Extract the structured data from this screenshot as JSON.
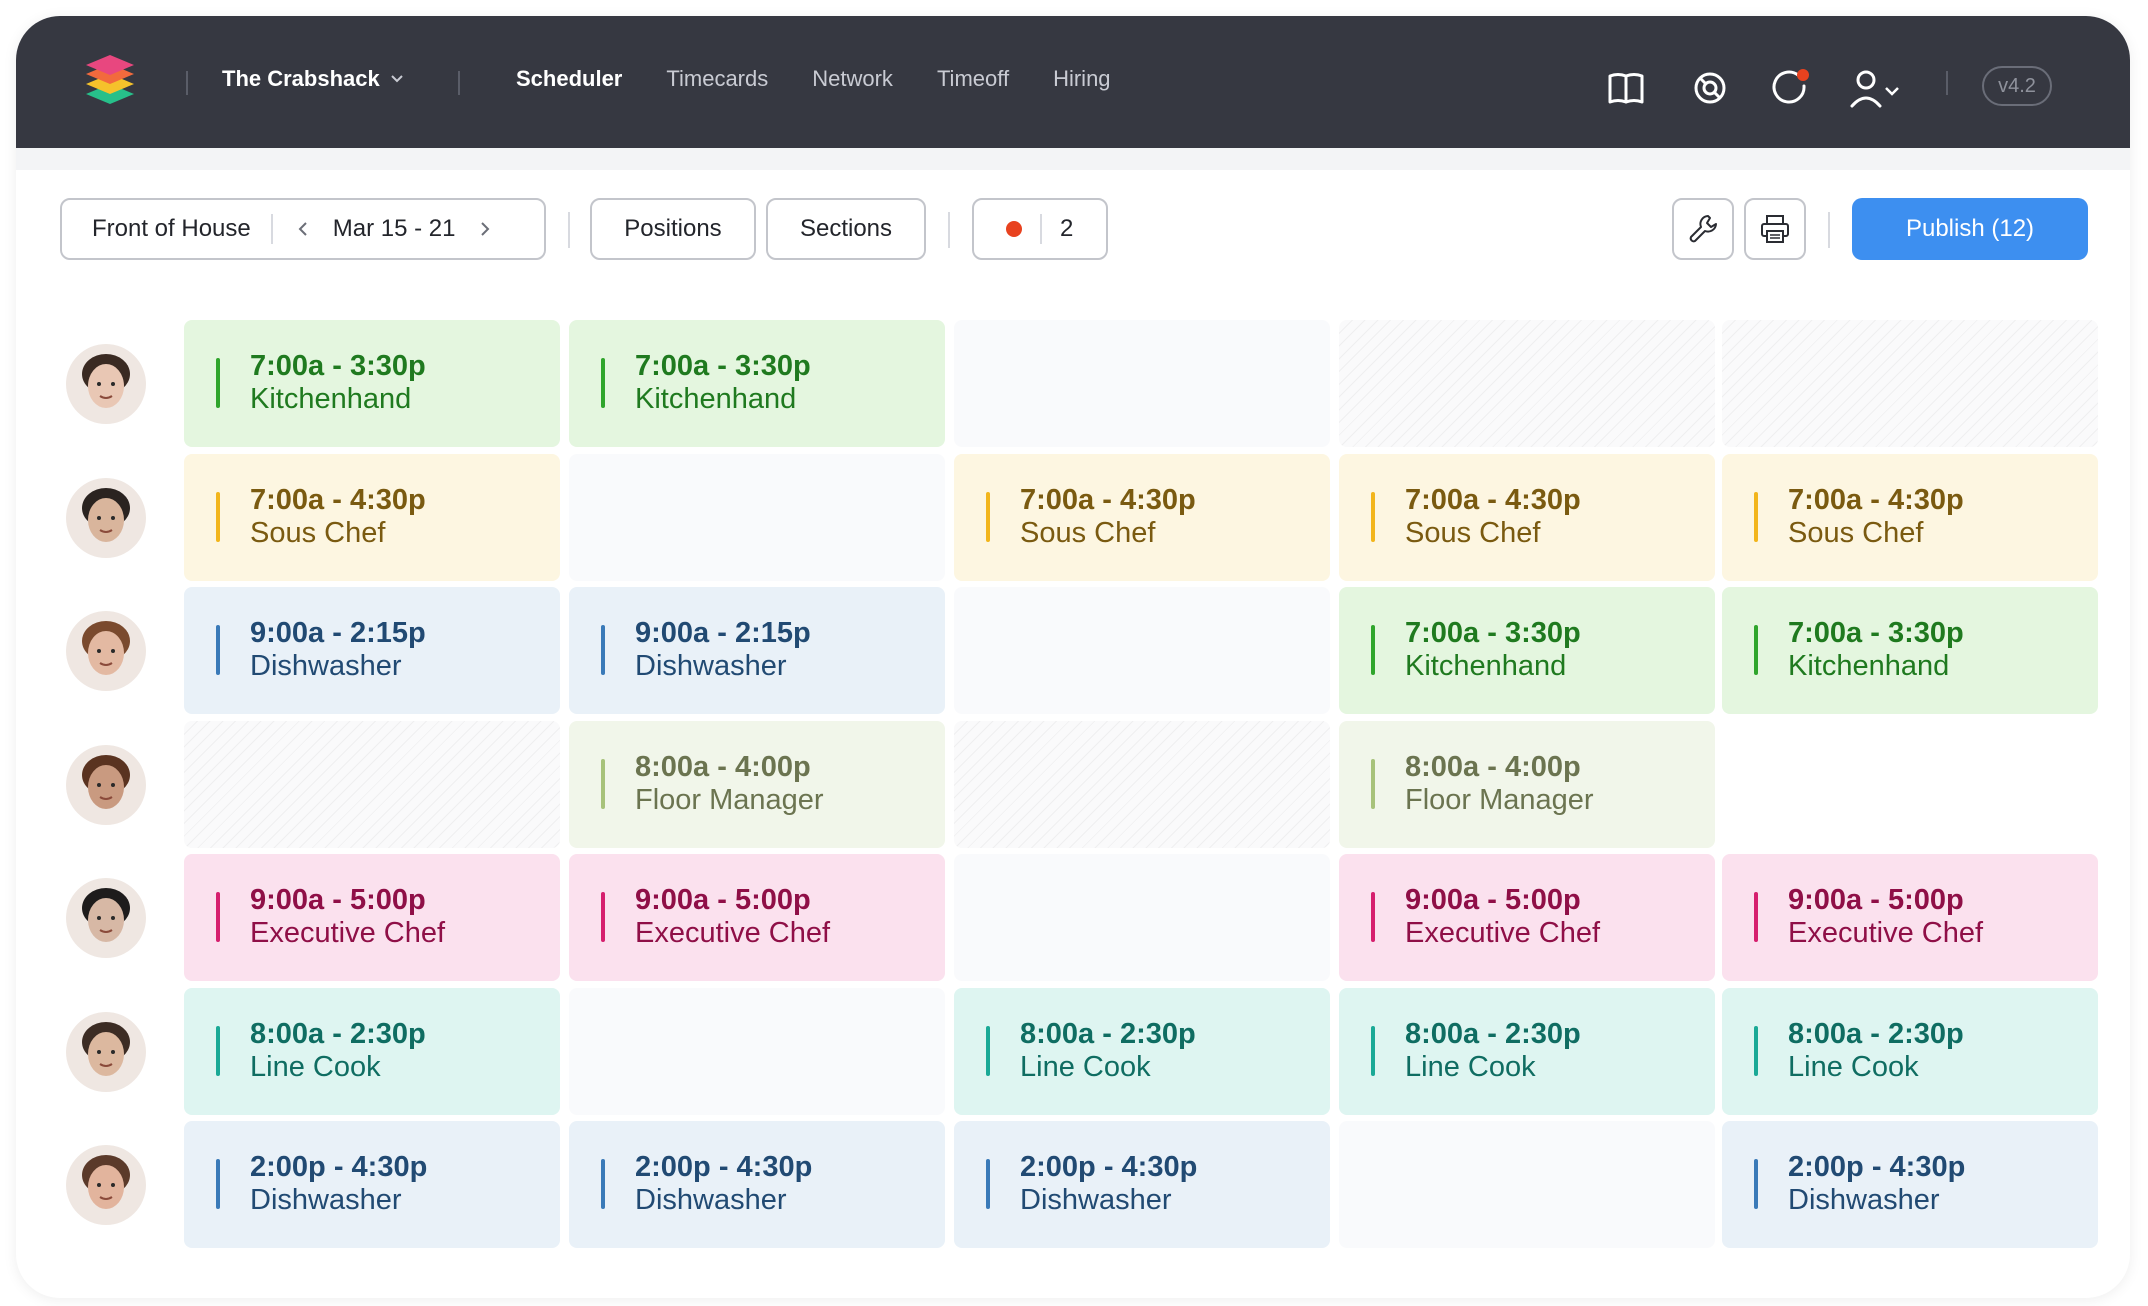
{
  "header": {
    "org_name": "The Crabshack",
    "nav": [
      {
        "label": "Scheduler",
        "active": true
      },
      {
        "label": "Timecards",
        "active": false
      },
      {
        "label": "Network",
        "active": false
      },
      {
        "label": "Timeoff",
        "active": false
      },
      {
        "label": "Hiring",
        "active": false
      }
    ],
    "icons": [
      "book-icon",
      "help-icon",
      "notifications-icon",
      "user-menu-icon"
    ],
    "version": "v4.2"
  },
  "toolbar": {
    "location": "Front of House",
    "date_range": "Mar 15 - 21",
    "positions_label": "Positions",
    "sections_label": "Sections",
    "alert_count": "2",
    "publish_label": "Publish (12)",
    "colors": {
      "accent": "#3d8ff0",
      "alert": "#e8421f"
    }
  },
  "schedule": {
    "rows": [
      {
        "avatar": "avatar-1",
        "cells": [
          {
            "kind": "shift",
            "time": "7:00a - 3:30p",
            "role": "Kitchenhand",
            "color": "green"
          },
          {
            "kind": "shift",
            "time": "7:00a - 3:30p",
            "role": "Kitchenhand",
            "color": "green"
          },
          {
            "kind": "empty"
          },
          {
            "kind": "unavailable"
          },
          {
            "kind": "unavailable"
          }
        ]
      },
      {
        "avatar": "avatar-2",
        "cells": [
          {
            "kind": "shift",
            "time": "7:00a - 4:30p",
            "role": "Sous Chef",
            "color": "yellow"
          },
          {
            "kind": "empty"
          },
          {
            "kind": "shift",
            "time": "7:00a - 4:30p",
            "role": "Sous Chef",
            "color": "yellow"
          },
          {
            "kind": "shift",
            "time": "7:00a - 4:30p",
            "role": "Sous Chef",
            "color": "yellow"
          },
          {
            "kind": "shift",
            "time": "7:00a - 4:30p",
            "role": "Sous Chef",
            "color": "yellow"
          }
        ]
      },
      {
        "avatar": "avatar-3",
        "cells": [
          {
            "kind": "shift",
            "time": "9:00a - 2:15p",
            "role": "Dishwasher",
            "color": "blue"
          },
          {
            "kind": "shift",
            "time": "9:00a - 2:15p",
            "role": "Dishwasher",
            "color": "blue"
          },
          {
            "kind": "empty"
          },
          {
            "kind": "shift",
            "time": "7:00a - 3:30p",
            "role": "Kitchenhand",
            "color": "green"
          },
          {
            "kind": "shift",
            "time": "7:00a - 3:30p",
            "role": "Kitchenhand",
            "color": "green"
          }
        ]
      },
      {
        "avatar": "avatar-4",
        "cells": [
          {
            "kind": "unavailable"
          },
          {
            "kind": "shift",
            "time": "8:00a - 4:00p",
            "role": "Floor Manager",
            "color": "olive"
          },
          {
            "kind": "unavailable"
          },
          {
            "kind": "shift",
            "time": "8:00a - 4:00p",
            "role": "Floor Manager",
            "color": "olive"
          },
          {
            "kind": "none"
          }
        ]
      },
      {
        "avatar": "avatar-5",
        "cells": [
          {
            "kind": "shift",
            "time": "9:00a - 5:00p",
            "role": "Executive Chef",
            "color": "pink"
          },
          {
            "kind": "shift",
            "time": "9:00a - 5:00p",
            "role": "Executive Chef",
            "color": "pink"
          },
          {
            "kind": "empty"
          },
          {
            "kind": "shift",
            "time": "9:00a - 5:00p",
            "role": "Executive Chef",
            "color": "pink"
          },
          {
            "kind": "shift",
            "time": "9:00a - 5:00p",
            "role": "Executive Chef",
            "color": "pink"
          }
        ]
      },
      {
        "avatar": "avatar-6",
        "cells": [
          {
            "kind": "shift",
            "time": "8:00a - 2:30p",
            "role": "Line Cook",
            "color": "teal"
          },
          {
            "kind": "empty"
          },
          {
            "kind": "shift",
            "time": "8:00a - 2:30p",
            "role": "Line Cook",
            "color": "teal"
          },
          {
            "kind": "shift",
            "time": "8:00a - 2:30p",
            "role": "Line Cook",
            "color": "teal"
          },
          {
            "kind": "shift",
            "time": "8:00a - 2:30p",
            "role": "Line Cook",
            "color": "teal"
          }
        ]
      },
      {
        "avatar": "avatar-7",
        "cells": [
          {
            "kind": "shift",
            "time": "2:00p - 4:30p",
            "role": "Dishwasher",
            "color": "blue"
          },
          {
            "kind": "shift",
            "time": "2:00p - 4:30p",
            "role": "Dishwasher",
            "color": "blue"
          },
          {
            "kind": "shift",
            "time": "2:00p - 4:30p",
            "role": "Dishwasher",
            "color": "blue"
          },
          {
            "kind": "empty"
          },
          {
            "kind": "shift",
            "time": "2:00p - 4:30p",
            "role": "Dishwasher",
            "color": "blue"
          }
        ]
      }
    ]
  }
}
